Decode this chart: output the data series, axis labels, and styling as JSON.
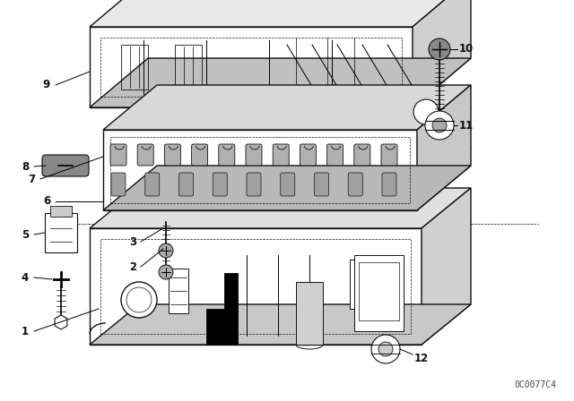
{
  "bg_color": "#ffffff",
  "line_color": "#111111",
  "watermark": "0C0077C4",
  "fig_w": 6.4,
  "fig_h": 4.48,
  "dpi": 100
}
